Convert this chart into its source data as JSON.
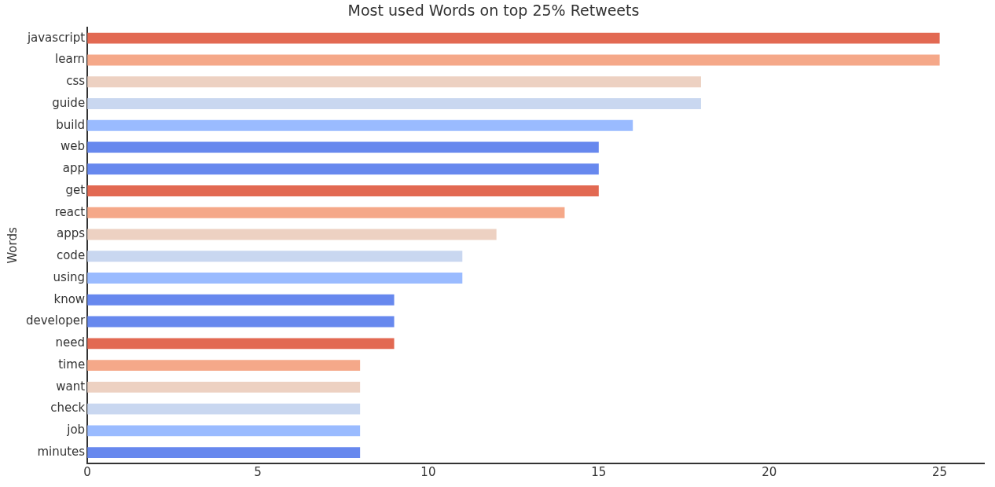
{
  "chart_data": {
    "type": "bar",
    "orientation": "horizontal",
    "title": "Most used Words on top 25% Retweets",
    "ylabel": "Words",
    "categories": [
      "javascript",
      "learn",
      "css",
      "guide",
      "build",
      "web",
      "app",
      "get",
      "react",
      "apps",
      "code",
      "using",
      "know",
      "developer",
      "need",
      "time",
      "want",
      "check",
      "job",
      "minutes"
    ],
    "values": [
      25,
      25,
      18,
      18,
      16,
      15,
      15,
      15,
      14,
      12,
      11,
      11,
      9,
      9,
      9,
      8,
      8,
      8,
      8,
      8
    ],
    "colors": [
      "#e26952",
      "#f5a889",
      "#edd1c2",
      "#c9d7f0",
      "#9abbff",
      "#6788ee",
      "#6788ee",
      "#e26952",
      "#f5a889",
      "#edd1c2",
      "#c9d7f0",
      "#9abbff",
      "#6788ee",
      "#6788ee",
      "#e26952",
      "#f5a889",
      "#edd1c2",
      "#c9d7f0",
      "#9abbff",
      "#6788ee"
    ],
    "xlim": [
      0,
      26.3
    ],
    "xticks": [
      0,
      5,
      10,
      15,
      20,
      25
    ],
    "grid": false,
    "legend": false
  }
}
